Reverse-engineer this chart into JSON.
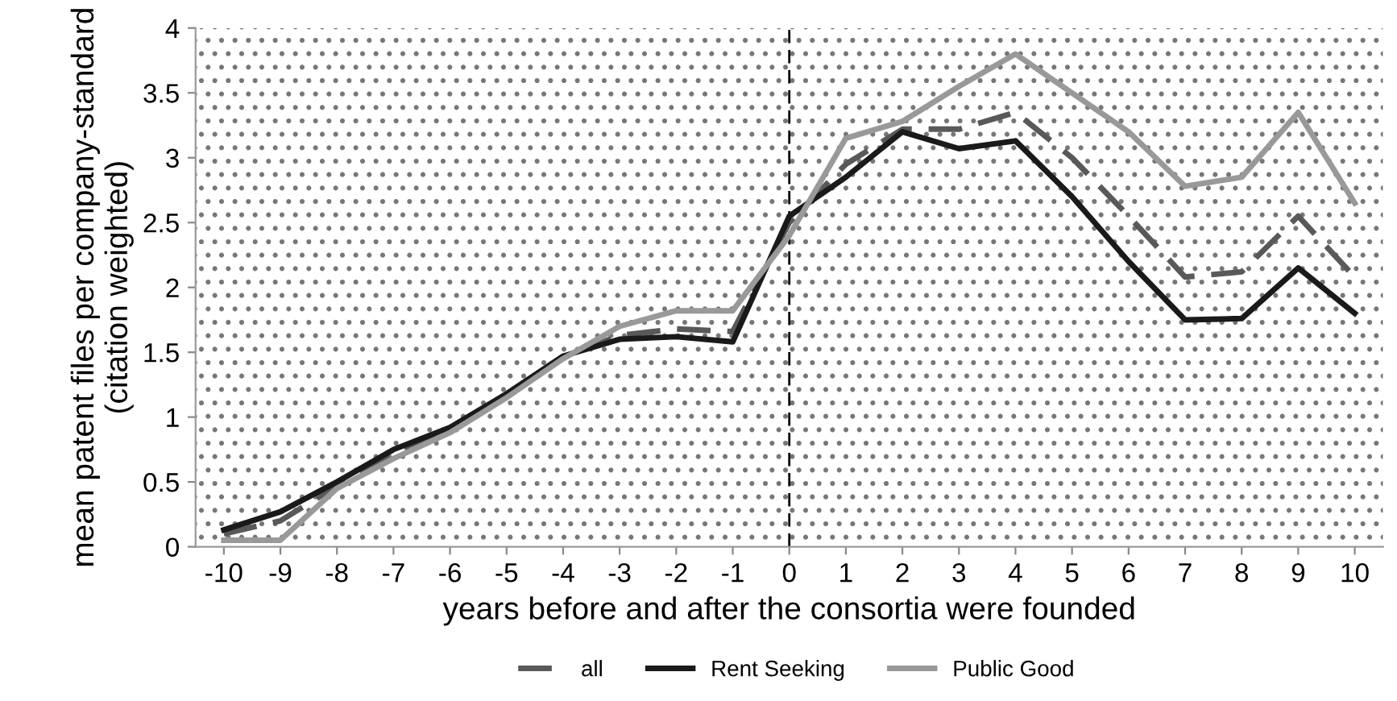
{
  "chart_data": {
    "type": "line",
    "xlabel": "years before and after the consortia were founded",
    "ylabel": "mean patent files per company-standard (citation weighted)",
    "categories": [
      "-10",
      "-9",
      "-8",
      "-7",
      "-6",
      "-5",
      "-4",
      "-3",
      "-2",
      "-1",
      "0",
      "1",
      "2",
      "3",
      "4",
      "5",
      "6",
      "7",
      "8",
      "9",
      "10"
    ],
    "series": [
      {
        "name": "all",
        "color": "#595959",
        "line_style": "dashed",
        "values": [
          0.1,
          0.2,
          0.47,
          0.7,
          0.9,
          1.16,
          1.46,
          1.63,
          1.68,
          1.66,
          2.5,
          2.95,
          3.22,
          3.22,
          3.35,
          3.0,
          2.55,
          2.08,
          2.12,
          2.55,
          2.08
        ]
      },
      {
        "name": "Rent Seeking",
        "color": "#1a1a1a",
        "line_style": "solid",
        "values": [
          0.13,
          0.27,
          0.5,
          0.75,
          0.92,
          1.18,
          1.47,
          1.6,
          1.62,
          1.58,
          2.55,
          2.85,
          3.2,
          3.07,
          3.13,
          2.7,
          2.2,
          1.75,
          1.76,
          2.15,
          1.8
        ]
      },
      {
        "name": "Public Good",
        "color": "#999999",
        "line_style": "solid",
        "values": [
          0.05,
          0.05,
          0.45,
          0.68,
          0.88,
          1.15,
          1.45,
          1.7,
          1.82,
          1.82,
          2.4,
          3.15,
          3.28,
          3.55,
          3.8,
          3.5,
          3.2,
          2.78,
          2.85,
          3.35,
          2.65
        ]
      }
    ],
    "ylim": [
      0,
      4
    ],
    "yticks": [
      0,
      0.5,
      1,
      1.5,
      2,
      2.5,
      3,
      3.5,
      4
    ],
    "ref_lines": [
      {
        "axis": "x",
        "value": "0",
        "color": "#000000",
        "line_style": "dashed"
      }
    ],
    "grid": false,
    "legend": "bottom",
    "marker": "none"
  }
}
